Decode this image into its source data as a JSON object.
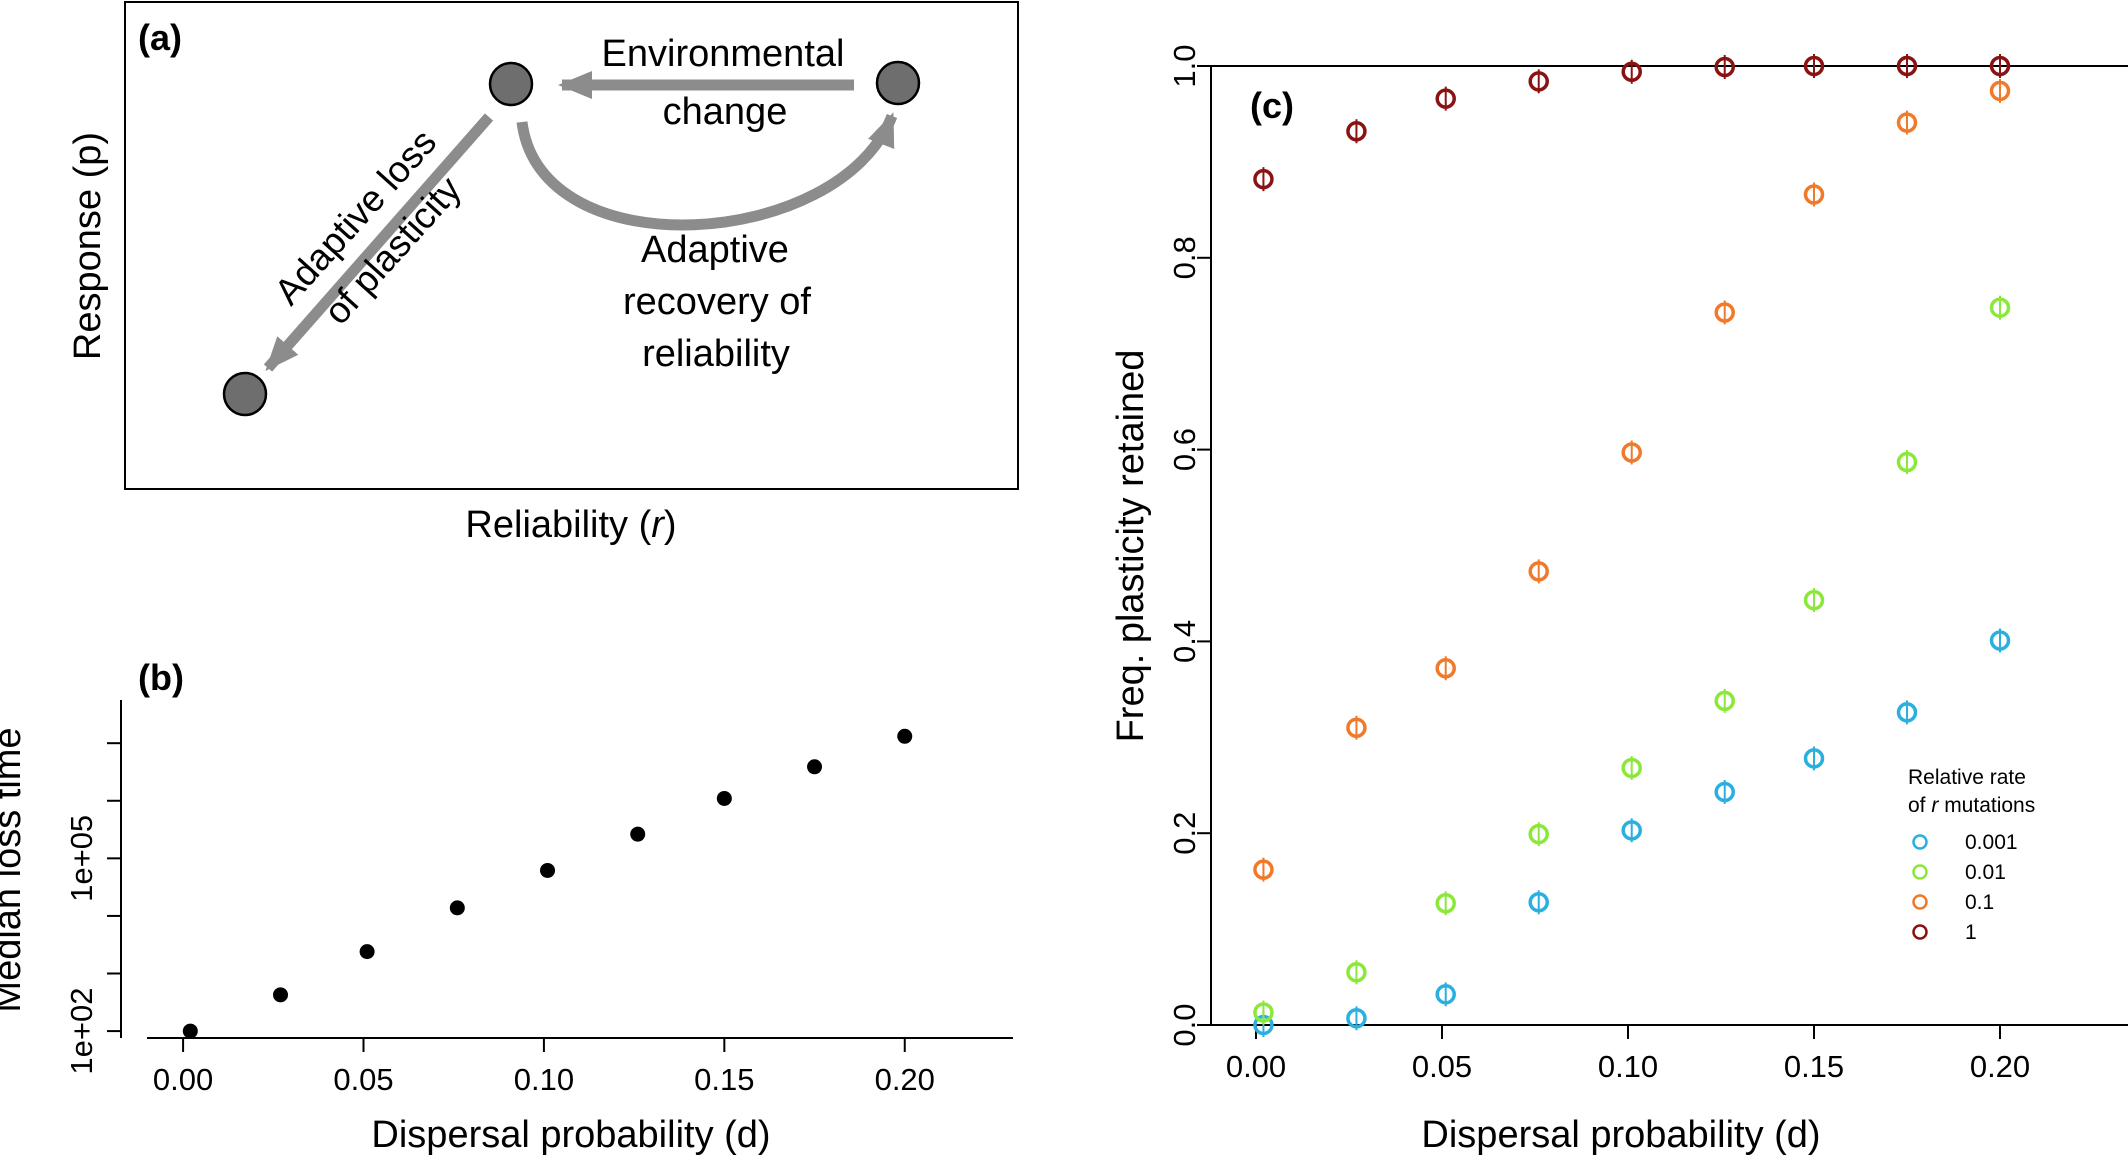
{
  "panel_a": {
    "label": "(a)",
    "ylabel": "Response (p)",
    "xlabel_prefix": "Reliability (",
    "xlabel_var": "r",
    "xlabel_suffix": ")",
    "arrow_env_line1": "Environmental",
    "arrow_env_line2": "change",
    "arrow_loss_line1": "Adaptive loss",
    "arrow_loss_line2": "of plasticity",
    "arrow_recovery_line1": "Adaptive",
    "arrow_recovery_line2": "recovery of",
    "arrow_recovery_line3": "reliability",
    "colors": {
      "node": "#6e6e6e",
      "arrow": "#8c8c8c"
    }
  },
  "chart_data": [
    {
      "id": "panel_b",
      "label": "(b)",
      "type": "scatter",
      "xlabel": "Dispersal probability (d)",
      "ylabel": "Median loss time",
      "xlim": [
        -0.01,
        0.23
      ],
      "xticks": [
        "0.00",
        "0.05",
        "0.10",
        "0.15",
        "0.20"
      ],
      "ylog": true,
      "ytick_labels": [
        {
          "value": 100,
          "label": "1e+02"
        },
        {
          "value": 100000,
          "label": "1e+05"
        }
      ],
      "yminor_ticks": [
        1000,
        10000,
        1000000,
        10000000
      ],
      "ylim_log10": [
        1.88,
        7.75
      ],
      "x": [
        0.002,
        0.027,
        0.051,
        0.076,
        0.101,
        0.126,
        0.15,
        0.175,
        0.2
      ],
      "y_log10": [
        2.0,
        2.63,
        3.38,
        4.14,
        4.79,
        5.42,
        6.04,
        6.59,
        7.12
      ],
      "marker_color": "#000000"
    },
    {
      "id": "panel_c",
      "label": "(c)",
      "type": "scatter",
      "xlabel": "Dispersal probability (d)",
      "ylabel": "Freq. plasticity retained",
      "xlim": [
        -0.01,
        0.23
      ],
      "ylim": [
        0.0,
        1.0
      ],
      "xticks": [
        "0.00",
        "0.05",
        "0.10",
        "0.15",
        "0.20"
      ],
      "yticks": [
        "0.0",
        "0.2",
        "0.4",
        "0.6",
        "0.8",
        "1.0"
      ],
      "legend_title_line1": "Relative rate",
      "legend_title_line2_prefix": "of ",
      "legend_title_line2_var": "r",
      "legend_title_line2_suffix": " mutations",
      "legend_position": "right",
      "x": [
        0.002,
        0.027,
        0.051,
        0.076,
        0.101,
        0.126,
        0.15,
        0.175,
        0.2
      ],
      "series": [
        {
          "name": "0.001",
          "color": "#2ab0e0",
          "values": [
            0.0,
            0.007,
            0.032,
            0.128,
            0.203,
            0.243,
            0.278,
            0.326,
            0.401
          ]
        },
        {
          "name": "0.01",
          "color": "#8be83a",
          "values": [
            0.013,
            0.055,
            0.127,
            0.199,
            0.268,
            0.338,
            0.443,
            0.587,
            0.748
          ]
        },
        {
          "name": "0.1",
          "color": "#f07a2a",
          "values": [
            0.162,
            0.31,
            0.372,
            0.473,
            0.597,
            0.743,
            0.866,
            0.941,
            0.974
          ]
        },
        {
          "name": "1",
          "color": "#8a1212",
          "values": [
            0.882,
            0.932,
            0.966,
            0.984,
            0.994,
            0.999,
            1.0,
            1.0,
            1.0
          ]
        }
      ]
    }
  ]
}
